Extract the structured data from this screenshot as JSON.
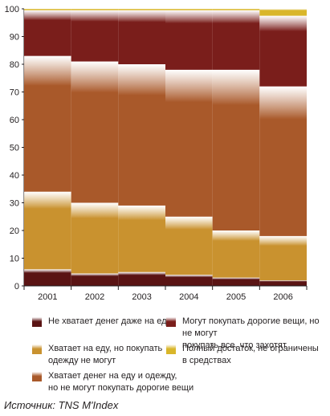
{
  "chart_data": {
    "type": "bar",
    "stacked": true,
    "categories": [
      "2001",
      "2002",
      "2003",
      "2004",
      "2005",
      "2006"
    ],
    "ylim": [
      0,
      100
    ],
    "yticks": [
      0,
      10,
      20,
      30,
      40,
      50,
      60,
      70,
      80,
      90,
      100
    ],
    "grid": false,
    "legend_position": "bottom",
    "series": [
      {
        "name": "Не хватает денег даже на еду",
        "color": "#5a1414",
        "values": [
          6,
          4.5,
          5,
          4,
          3,
          2
        ]
      },
      {
        "name": "Хватает на еду, но покупать одежду не могут",
        "color": "#c9922f",
        "values": [
          28,
          25.5,
          24,
          21,
          17,
          16
        ]
      },
      {
        "name": "Хватает денег на еду и одежду, но не могут покупать дорогие вещи",
        "color": "#a9592a",
        "values": [
          49,
          51,
          51,
          53,
          58,
          54
        ]
      },
      {
        "name": "Могут покупать дорогие вещи, но не могут покупать все, что захотят",
        "color": "#7a1e1b",
        "values": [
          16.5,
          18.5,
          19.5,
          21.5,
          21.5,
          25.5
        ]
      },
      {
        "name": "Полный достаток, не ограничены в средствах",
        "color": "#d9b62a",
        "values": [
          0.5,
          0.5,
          0.5,
          0.5,
          0.5,
          2.5
        ]
      }
    ]
  },
  "legend": [
    {
      "label": "Не хватает денег даже на еду",
      "color": "#5a1414",
      "icon": "swatch-dark-red-icon"
    },
    {
      "label": "Могут покупать дорогие вещи, но не могут\nпокупать все, что захотят",
      "color": "#7a1e1b",
      "icon": "swatch-maroon-icon"
    },
    {
      "label": "Хватает на еду, но покупать\nодежду не могут",
      "color": "#c9922f",
      "icon": "swatch-gold-icon"
    },
    {
      "label": "Полный достаток, не ограничены\nв средствах",
      "color": "#d9b62a",
      "icon": "swatch-yellow-icon"
    },
    {
      "label": "Хватает денег на еду и одежду,\nно не могут покупать дорогие вещи",
      "color": "#a9592a",
      "icon": "swatch-brown-icon"
    }
  ],
  "source": "Источник: TNS M'Index"
}
